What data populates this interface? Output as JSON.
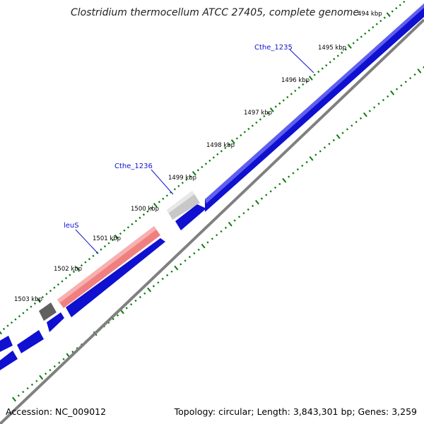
{
  "title": "Clostridium thermocellum ATCC 27405, complete genome",
  "accession": "Accession: NC_009012",
  "topology": "Topology: circular; Length: 3,843,301 bp; Genes: 3,259",
  "colors": {
    "cds": "#1010d0",
    "backbone": "#777777",
    "tick": "#0a7a0a",
    "gene_label": "#1010d0",
    "leuS": "#f08080",
    "cthe_1236": "#c8c8c8",
    "dark_gene": "#606060"
  },
  "scale_labels": [
    "494 kbp",
    "1495 kbp",
    "1496 kbp",
    "1497 kbp",
    "1498 kbp",
    "1499 kbp",
    "1500 kbp",
    "1501 kbp",
    "1502 kbp",
    "1503 kbp"
  ],
  "gene_labels": [
    "Cthe_1235",
    "Cthe_1236",
    "leuS"
  ]
}
